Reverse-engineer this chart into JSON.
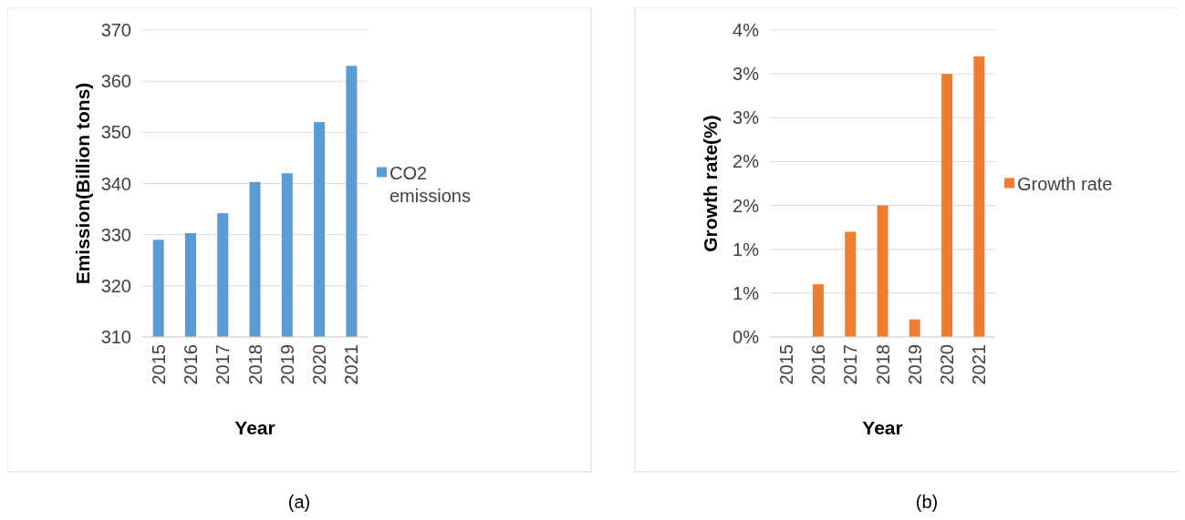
{
  "chart_data": [
    {
      "type": "bar",
      "xlabel": "Year",
      "ylabel": "Emission(Billion tons)",
      "categories": [
        "2015",
        "2016",
        "2017",
        "2018",
        "2019",
        "2020",
        "2021"
      ],
      "series": [
        {
          "name": "CO2 emissions",
          "color": "#5b9bd5",
          "values": [
            329,
            330.3,
            334.2,
            340.3,
            342,
            352,
            363
          ]
        }
      ],
      "ylim": [
        310,
        370
      ],
      "yticks": [
        310,
        320,
        330,
        340,
        350,
        360,
        370
      ],
      "grid": "y",
      "legend": "right",
      "annotations": [
        "(a)"
      ]
    },
    {
      "type": "bar",
      "xlabel": "Year",
      "ylabel": "Growth rate(%)",
      "categories": [
        "2015",
        "2016",
        "2017",
        "2018",
        "2019",
        "2020",
        "2021"
      ],
      "series": [
        {
          "name": "Growth rate",
          "color": "#ed7d31",
          "values": [
            0,
            0.6,
            1.2,
            1.5,
            0.2,
            3.0,
            3.2
          ]
        }
      ],
      "ylim": [
        0,
        3.5
      ],
      "yticks": [
        {
          "value": 0,
          "label": "0%"
        },
        {
          "value": 0.5,
          "label": "1%"
        },
        {
          "value": 1,
          "label": "1%"
        },
        {
          "value": 1.5,
          "label": "2%"
        },
        {
          "value": 2,
          "label": "2%"
        },
        {
          "value": 2.5,
          "label": "3%"
        },
        {
          "value": 3,
          "label": "3%"
        },
        {
          "value": 3.5,
          "label": "4%"
        }
      ],
      "grid": "y",
      "legend": "right",
      "annotations": [
        "(b)"
      ]
    }
  ]
}
